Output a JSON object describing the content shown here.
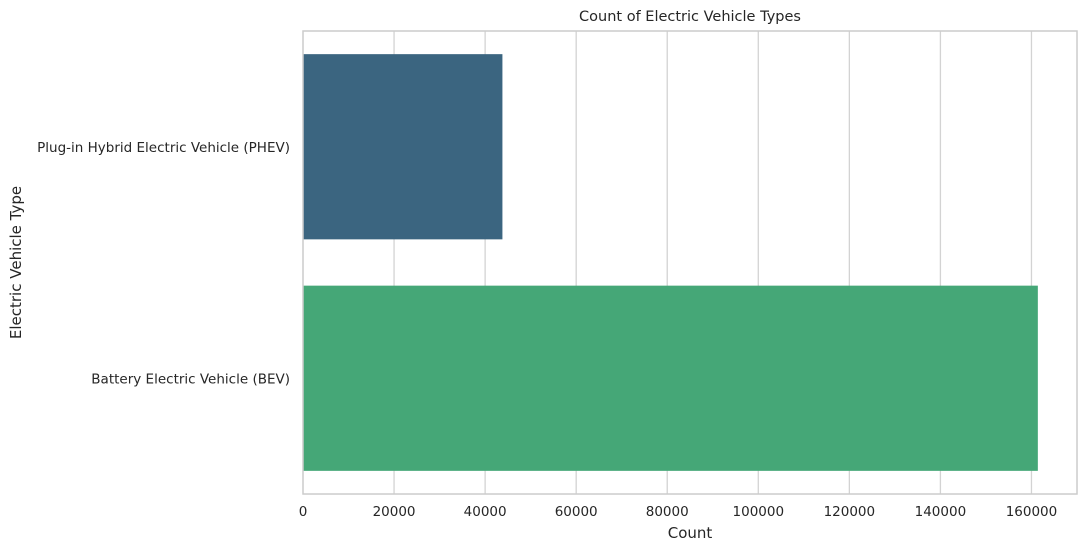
{
  "chart_data": {
    "type": "bar",
    "orientation": "horizontal",
    "title": "Count of Electric Vehicle Types",
    "xlabel": "Count",
    "ylabel": "Electric Vehicle Type",
    "categories": [
      "Plug-in Hybrid Electric Vehicle (PHEV)",
      "Battery Electric Vehicle (BEV)"
    ],
    "values": [
      43800,
      161400
    ],
    "colors": [
      "#3b6580",
      "#45a777"
    ],
    "xlim": [
      0,
      170000
    ],
    "xticks": [
      0,
      20000,
      40000,
      60000,
      80000,
      100000,
      120000,
      140000,
      160000
    ],
    "xtick_labels": [
      "0",
      "20000",
      "40000",
      "60000",
      "80000",
      "100000",
      "120000",
      "140000",
      "160000"
    ],
    "grid": "vertical",
    "frame_color": "#cccccc",
    "grid_color": "#d3d3d3"
  }
}
